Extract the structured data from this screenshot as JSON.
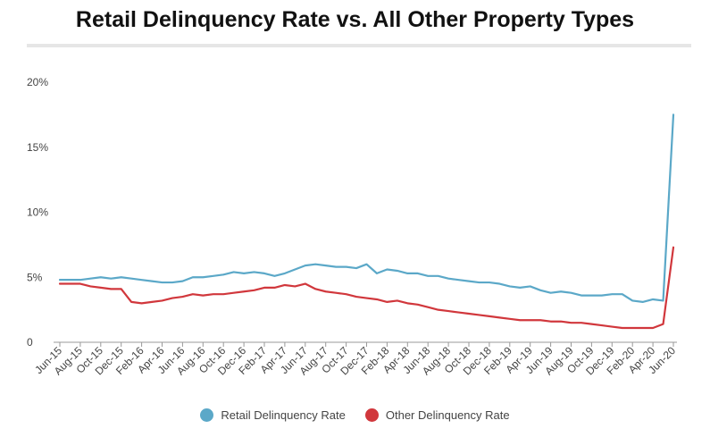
{
  "chart_data": {
    "type": "line",
    "title": "Retail Delinquency Rate vs. All Other Property Types",
    "xlabel": "",
    "ylabel": "",
    "ylim": [
      0,
      20
    ],
    "yticks": [
      {
        "value": 0,
        "label": "0"
      },
      {
        "value": 5,
        "label": "5%"
      },
      {
        "value": 10,
        "label": "10%"
      },
      {
        "value": 15,
        "label": "15%"
      },
      {
        "value": 20,
        "label": "20%"
      }
    ],
    "x": [
      "Jun-15",
      "Jul-15",
      "Aug-15",
      "Sep-15",
      "Oct-15",
      "Nov-15",
      "Dec-15",
      "Jan-16",
      "Feb-16",
      "Mar-16",
      "Apr-16",
      "May-16",
      "Jun-16",
      "Jul-16",
      "Aug-16",
      "Sep-16",
      "Oct-16",
      "Nov-16",
      "Dec-16",
      "Jan-17",
      "Feb-17",
      "Mar-17",
      "Apr-17",
      "May-17",
      "Jun-17",
      "Jul-17",
      "Aug-17",
      "Sep-17",
      "Oct-17",
      "Nov-17",
      "Dec-17",
      "Jan-18",
      "Feb-18",
      "Mar-18",
      "Apr-18",
      "May-18",
      "Jun-18",
      "Jul-18",
      "Aug-18",
      "Sep-18",
      "Oct-18",
      "Nov-18",
      "Dec-18",
      "Jan-19",
      "Feb-19",
      "Mar-19",
      "Apr-19",
      "May-19",
      "Jun-19",
      "Jul-19",
      "Aug-19",
      "Sep-19",
      "Oct-19",
      "Nov-19",
      "Dec-19",
      "Jan-20",
      "Feb-20",
      "Mar-20",
      "Apr-20",
      "May-20",
      "Jun-20"
    ],
    "xtick_labels": [
      "Jun-15",
      "Aug-15",
      "Oct-15",
      "Dec-15",
      "Feb-16",
      "Apr-16",
      "Jun-16",
      "Aug-16",
      "Oct-16",
      "Dec-16",
      "Feb-17",
      "Apr-17",
      "Jun-17",
      "Aug-17",
      "Oct-17",
      "Dec-17",
      "Feb-18",
      "Apr-18",
      "Jun-18",
      "Aug-18",
      "Oct-18",
      "Dec-18",
      "Feb-19",
      "Apr-19",
      "Jun-19",
      "Aug-19",
      "Oct-19",
      "Dec-19",
      "Feb-20",
      "Apr-20",
      "Jun-20"
    ],
    "series": [
      {
        "name": "Retail Delinquency Rate",
        "color": "#5ba8c8",
        "values": [
          4.8,
          4.8,
          4.8,
          4.9,
          5.0,
          4.9,
          5.0,
          4.9,
          4.8,
          4.7,
          4.6,
          4.6,
          4.7,
          5.0,
          5.0,
          5.1,
          5.2,
          5.4,
          5.3,
          5.4,
          5.3,
          5.1,
          5.3,
          5.6,
          5.9,
          6.0,
          5.9,
          5.8,
          5.8,
          5.7,
          6.0,
          5.3,
          5.6,
          5.5,
          5.3,
          5.3,
          5.1,
          5.1,
          4.9,
          4.8,
          4.7,
          4.6,
          4.6,
          4.5,
          4.3,
          4.2,
          4.3,
          4.0,
          3.8,
          3.9,
          3.8,
          3.6,
          3.6,
          3.6,
          3.7,
          3.7,
          3.2,
          3.1,
          3.3,
          3.2,
          17.5
        ]
      },
      {
        "name": "Other Delinquency Rate",
        "color": "#d1373c",
        "values": [
          4.5,
          4.5,
          4.5,
          4.3,
          4.2,
          4.1,
          4.1,
          3.1,
          3.0,
          3.1,
          3.2,
          3.4,
          3.5,
          3.7,
          3.6,
          3.7,
          3.7,
          3.8,
          3.9,
          4.0,
          4.2,
          4.2,
          4.4,
          4.3,
          4.5,
          4.1,
          3.9,
          3.8,
          3.7,
          3.5,
          3.4,
          3.3,
          3.1,
          3.2,
          3.0,
          2.9,
          2.7,
          2.5,
          2.4,
          2.3,
          2.2,
          2.1,
          2.0,
          1.9,
          1.8,
          1.7,
          1.7,
          1.7,
          1.6,
          1.6,
          1.5,
          1.5,
          1.4,
          1.3,
          1.2,
          1.1,
          1.1,
          1.1,
          1.1,
          1.4,
          7.3
        ]
      }
    ],
    "legend": "bottom-center",
    "grid": false
  }
}
